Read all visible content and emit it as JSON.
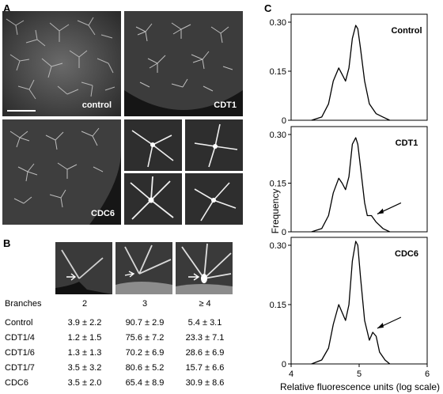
{
  "panels": {
    "a": "A",
    "b": "B",
    "c": "C"
  },
  "panel_a": {
    "labels": {
      "control": "control",
      "cdt1": "CDT1",
      "cdc6": "CDC6"
    }
  },
  "panel_b": {
    "header": [
      "Branches",
      "2",
      "3",
      "≥ 4"
    ],
    "rows": [
      {
        "label": "Control",
        "values": [
          "3.9 ± 2.2",
          "90.7 ± 2.9",
          "5.4 ± 3.1"
        ]
      },
      {
        "label": "CDT1/4",
        "values": [
          "1.2 ± 1.5",
          "75.6 ± 7.2",
          "23.3 ± 7.1"
        ]
      },
      {
        "label": "CDT1/6",
        "values": [
          "1.3 ± 1.3",
          "70.2 ± 6.9",
          "28.6 ± 6.9"
        ]
      },
      {
        "label": "CDT1/7",
        "values": [
          "3.5 ± 3.2",
          "80.6 ± 5.2",
          "15.7 ± 6.6"
        ]
      },
      {
        "label": "CDC6",
        "values": [
          "3.5 ± 2.0",
          "65.4 ± 8.9",
          "30.9 ± 8.6"
        ]
      }
    ]
  },
  "chart_data": [
    {
      "type": "line",
      "title": "Control",
      "ylabel": "Frequency",
      "xlabel": "Relative fluorescence units (log scale)",
      "ylim": [
        0,
        0.3
      ],
      "xlim": [
        4,
        6
      ],
      "yticks": [
        "0",
        "0.15",
        "0.30"
      ],
      "x": [
        4.3,
        4.45,
        4.55,
        4.62,
        4.7,
        4.75,
        4.8,
        4.85,
        4.9,
        4.95,
        4.98,
        5.02,
        5.08,
        5.15,
        5.25,
        5.35,
        5.45
      ],
      "y": [
        0,
        0.01,
        0.05,
        0.12,
        0.16,
        0.14,
        0.12,
        0.16,
        0.25,
        0.29,
        0.28,
        0.22,
        0.12,
        0.05,
        0.02,
        0.01,
        0
      ]
    },
    {
      "type": "line",
      "title": "CDT1",
      "ylabel": "Frequency",
      "xlabel": "Relative fluorescence units (log scale)",
      "ylim": [
        0,
        0.3
      ],
      "xlim": [
        4,
        6
      ],
      "yticks": [
        "0",
        "0.15",
        "0.30"
      ],
      "annotation": "arrow",
      "x": [
        4.3,
        4.45,
        4.55,
        4.62,
        4.7,
        4.75,
        4.8,
        4.85,
        4.9,
        4.95,
        4.98,
        5.02,
        5.08,
        5.12,
        5.18,
        5.25,
        5.35,
        5.45
      ],
      "y": [
        0,
        0.01,
        0.05,
        0.12,
        0.165,
        0.15,
        0.13,
        0.17,
        0.27,
        0.29,
        0.27,
        0.2,
        0.09,
        0.05,
        0.05,
        0.03,
        0.01,
        0
      ]
    },
    {
      "type": "line",
      "title": "CDC6",
      "ylabel": "Frequency",
      "xlabel": "Relative fluorescence units (log scale)",
      "ylim": [
        0,
        0.3
      ],
      "xlim": [
        4,
        6
      ],
      "yticks": [
        "0",
        "0.15",
        "0.30"
      ],
      "annotation": "arrow",
      "x": [
        4.3,
        4.45,
        4.55,
        4.62,
        4.7,
        4.75,
        4.8,
        4.85,
        4.9,
        4.95,
        4.98,
        5.02,
        5.08,
        5.15,
        5.2,
        5.25,
        5.3,
        5.38,
        5.45
      ],
      "y": [
        0,
        0.01,
        0.04,
        0.1,
        0.15,
        0.13,
        0.11,
        0.15,
        0.26,
        0.31,
        0.3,
        0.22,
        0.11,
        0.06,
        0.08,
        0.07,
        0.03,
        0.01,
        0
      ]
    }
  ],
  "axis": {
    "xticks": [
      "4",
      "5",
      "6"
    ]
  }
}
